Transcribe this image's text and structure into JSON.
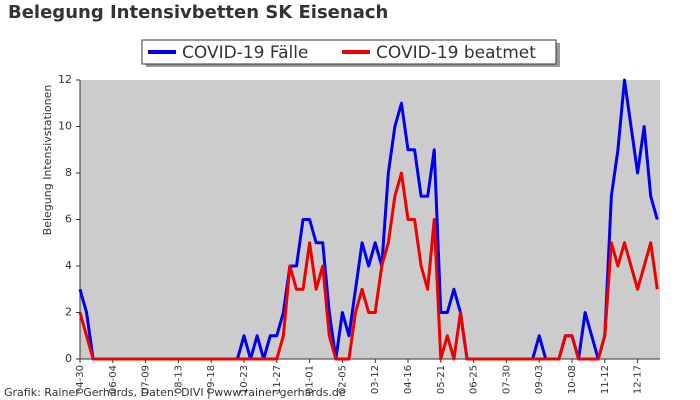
{
  "chart_data": {
    "type": "line",
    "title": "Belegung Intensivbetten SK Eisenach",
    "y_label": "Belegung Intensivstationen",
    "footer": "Grafik: Rainer Gerhards, Daten: DIVI | www.rainer-gerhards.de",
    "categories": [
      "04-30",
      null,
      null,
      null,
      null,
      "06-04",
      null,
      null,
      null,
      null,
      "07-09",
      null,
      null,
      null,
      null,
      "08-13",
      null,
      null,
      null,
      null,
      "09-18",
      null,
      null,
      null,
      null,
      "10-23",
      null,
      null,
      null,
      null,
      "11-27",
      null,
      null,
      null,
      null,
      "01-01",
      null,
      null,
      null,
      null,
      "02-05",
      null,
      null,
      null,
      null,
      "03-12",
      null,
      null,
      null,
      null,
      "04-16",
      null,
      null,
      null,
      null,
      "05-21",
      null,
      null,
      null,
      null,
      "06-25",
      null,
      null,
      null,
      null,
      "07-30",
      null,
      null,
      null,
      null,
      "09-03",
      null,
      null,
      null,
      null,
      "10-08",
      null,
      null,
      null,
      null,
      "11-12",
      null,
      null,
      null,
      null,
      "12-17",
      null,
      null,
      null
    ],
    "series": [
      {
        "name": "COVID-19 Fälle",
        "color": "#0000ee",
        "values": [
          3,
          2,
          0,
          0,
          0,
          0,
          0,
          0,
          0,
          0,
          0,
          0,
          0,
          0,
          0,
          0,
          0,
          0,
          0,
          0,
          0,
          0,
          0,
          0,
          0,
          1,
          0,
          1,
          0,
          1,
          1,
          2,
          4,
          4,
          6,
          6,
          5,
          5,
          2,
          0,
          2,
          1,
          3,
          5,
          4,
          5,
          4,
          8,
          10,
          11,
          9,
          9,
          7,
          7,
          9,
          2,
          2,
          3,
          2,
          0,
          0,
          0,
          0,
          0,
          0,
          0,
          0,
          0,
          0,
          0,
          1,
          0,
          0,
          0,
          1,
          1,
          0,
          2,
          1,
          0,
          1,
          7,
          9,
          12,
          10,
          8,
          10,
          7,
          6
        ]
      },
      {
        "name": "COVID-19 beatmet",
        "color": "#ee0000",
        "values": [
          2,
          1,
          0,
          0,
          0,
          0,
          0,
          0,
          0,
          0,
          0,
          0,
          0,
          0,
          0,
          0,
          0,
          0,
          0,
          0,
          0,
          0,
          0,
          0,
          0,
          0,
          0,
          0,
          0,
          0,
          0,
          1,
          4,
          3,
          3,
          5,
          3,
          4,
          1,
          0,
          0,
          0,
          2,
          3,
          2,
          2,
          4,
          5,
          7,
          8,
          6,
          6,
          4,
          3,
          6,
          0,
          1,
          0,
          2,
          0,
          0,
          0,
          0,
          0,
          0,
          0,
          0,
          0,
          0,
          0,
          0,
          0,
          0,
          0,
          1,
          1,
          0,
          0,
          0,
          0,
          1,
          5,
          4,
          5,
          4,
          3,
          4,
          5,
          3
        ]
      }
    ],
    "ylim": [
      0,
      12
    ],
    "yticks": [
      0,
      2,
      4,
      6,
      8,
      10,
      12
    ],
    "legend": "top"
  }
}
